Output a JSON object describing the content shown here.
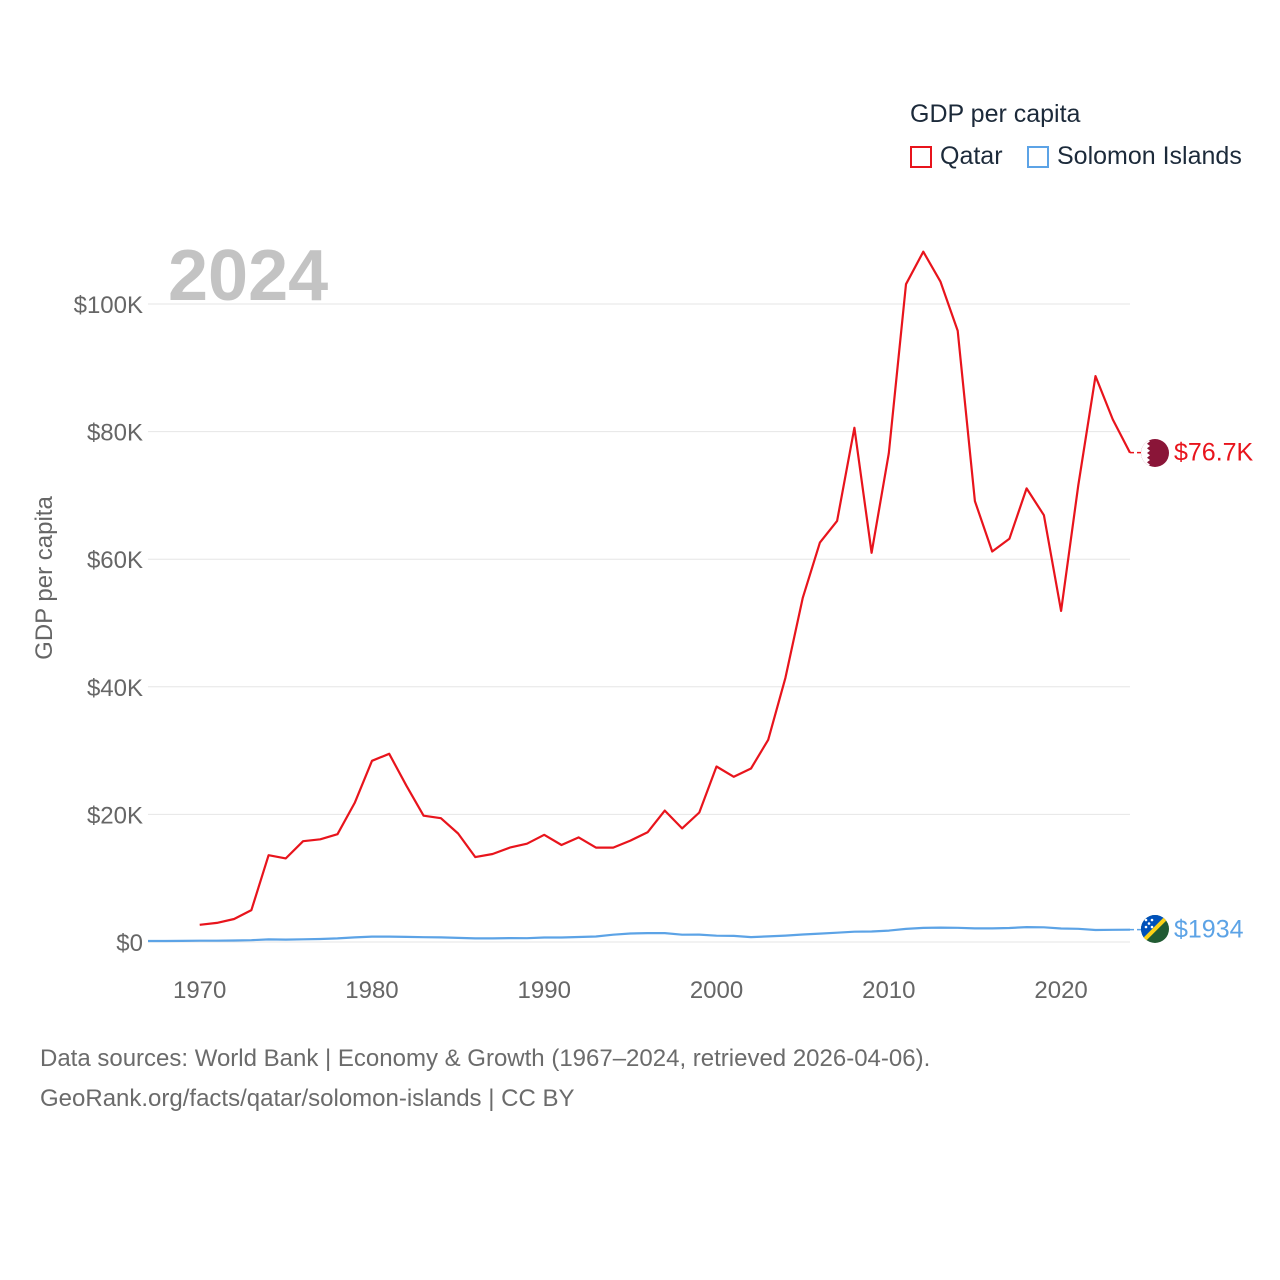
{
  "legend": {
    "title": "GDP per capita",
    "items": [
      {
        "label": "Qatar",
        "color": "#e8141c"
      },
      {
        "label": "Solomon Islands",
        "color": "#5ca3e6"
      }
    ]
  },
  "year_label": "2024",
  "footer": {
    "line1": "Data sources: World Bank | Economy & Growth (1967–2024, retrieved 2026-04-06).",
    "line2": "GeoRank.org/facts/qatar/solomon-islands | CC BY"
  },
  "chart_data": {
    "type": "line",
    "title": "",
    "xlabel": "",
    "ylabel": "GDP per capita",
    "xlim": [
      1967,
      2024
    ],
    "ylim": [
      0,
      110000
    ],
    "y_ticks": [
      0,
      20000,
      40000,
      60000,
      80000,
      100000
    ],
    "y_tick_labels": [
      "$0",
      "$20K",
      "$40K",
      "$60K",
      "$80K",
      "$100K"
    ],
    "x_ticks": [
      1970,
      1980,
      1990,
      2000,
      2010,
      2020
    ],
    "x_tick_labels": [
      "1970",
      "1980",
      "1990",
      "2000",
      "2010",
      "2020"
    ],
    "grid": true,
    "series": [
      {
        "name": "Qatar",
        "color": "#e8141c",
        "end_label": "$76.7K",
        "x": [
          1970,
          1971,
          1972,
          1973,
          1974,
          1975,
          1976,
          1977,
          1978,
          1979,
          1980,
          1981,
          1982,
          1983,
          1984,
          1985,
          1986,
          1987,
          1988,
          1989,
          1990,
          1991,
          1992,
          1993,
          1994,
          1995,
          1996,
          1997,
          1998,
          1999,
          2000,
          2001,
          2002,
          2003,
          2004,
          2005,
          2006,
          2007,
          2008,
          2009,
          2010,
          2011,
          2012,
          2013,
          2014,
          2015,
          2016,
          2017,
          2018,
          2019,
          2020,
          2021,
          2022,
          2023,
          2024
        ],
        "values": [
          2700,
          3000,
          3600,
          5000,
          13600,
          13100,
          15800,
          16100,
          16900,
          21800,
          28400,
          29500,
          24500,
          19800,
          19400,
          17000,
          13300,
          13800,
          14800,
          15400,
          16800,
          15200,
          16400,
          14800,
          14800,
          15900,
          17200,
          20600,
          17800,
          20300,
          27500,
          25900,
          27200,
          31700,
          41400,
          53900,
          62600,
          66000,
          80600,
          61000,
          76600,
          103100,
          108200,
          103500,
          95800,
          69100,
          61200,
          63200,
          71100,
          66900,
          51900,
          71600,
          88700,
          81900,
          76700
        ]
      },
      {
        "name": "Solomon Islands",
        "color": "#5ca3e6",
        "end_label": "$1934",
        "x": [
          1967,
          1968,
          1969,
          1970,
          1971,
          1972,
          1973,
          1974,
          1975,
          1976,
          1977,
          1978,
          1979,
          1980,
          1981,
          1982,
          1983,
          1984,
          1985,
          1986,
          1987,
          1988,
          1989,
          1990,
          1991,
          1992,
          1993,
          1994,
          1995,
          1996,
          1997,
          1998,
          1999,
          2000,
          2001,
          2002,
          2003,
          2004,
          2005,
          2006,
          2007,
          2008,
          2009,
          2010,
          2011,
          2012,
          2013,
          2014,
          2015,
          2016,
          2017,
          2018,
          2019,
          2020,
          2021,
          2022,
          2023,
          2024
        ],
        "values": [
          150,
          160,
          170,
          200,
          210,
          230,
          280,
          400,
          380,
          430,
          470,
          560,
          720,
          850,
          850,
          800,
          760,
          720,
          640,
          560,
          560,
          610,
          590,
          700,
          710,
          790,
          860,
          1150,
          1330,
          1400,
          1390,
          1150,
          1160,
          980,
          950,
          770,
          880,
          1000,
          1180,
          1320,
          1450,
          1620,
          1650,
          1780,
          2050,
          2210,
          2250,
          2220,
          2130,
          2130,
          2200,
          2330,
          2300,
          2110,
          2070,
          1880,
          1920,
          1934
        ]
      }
    ]
  }
}
